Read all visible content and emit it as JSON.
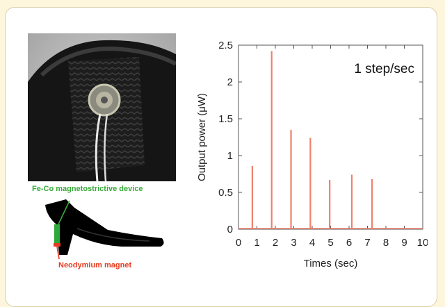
{
  "figure": {
    "annotation_device": "Fe-Co magnetostrictive device",
    "annotation_magnet": "Neodymium magnet"
  },
  "colors": {
    "spike": "#f0806c",
    "device_green": "#3aaa3a",
    "magnet_red": "#e53a1e",
    "axis": "#555555"
  },
  "chart_data": {
    "type": "bar",
    "title": "",
    "annotation": "1 step/sec",
    "xlabel": "Times (sec)",
    "ylabel": "Output power (μW)",
    "xlim": [
      0,
      10
    ],
    "ylim": [
      0,
      2.5
    ],
    "xticks": [
      "0",
      "1",
      "2",
      "3",
      "4",
      "5",
      "6",
      "7",
      "8",
      "9",
      "10"
    ],
    "yticks": [
      "0",
      "0.5",
      "1",
      "1.5",
      "2",
      "2.5"
    ],
    "grid": false,
    "legend": "none",
    "series": [
      {
        "x": [
          0.75,
          1.8,
          2.85,
          3.9,
          4.95,
          6.15,
          7.25
        ],
        "y": [
          0.86,
          2.42,
          1.35,
          1.24,
          0.67,
          0.74,
          0.68
        ]
      }
    ]
  }
}
